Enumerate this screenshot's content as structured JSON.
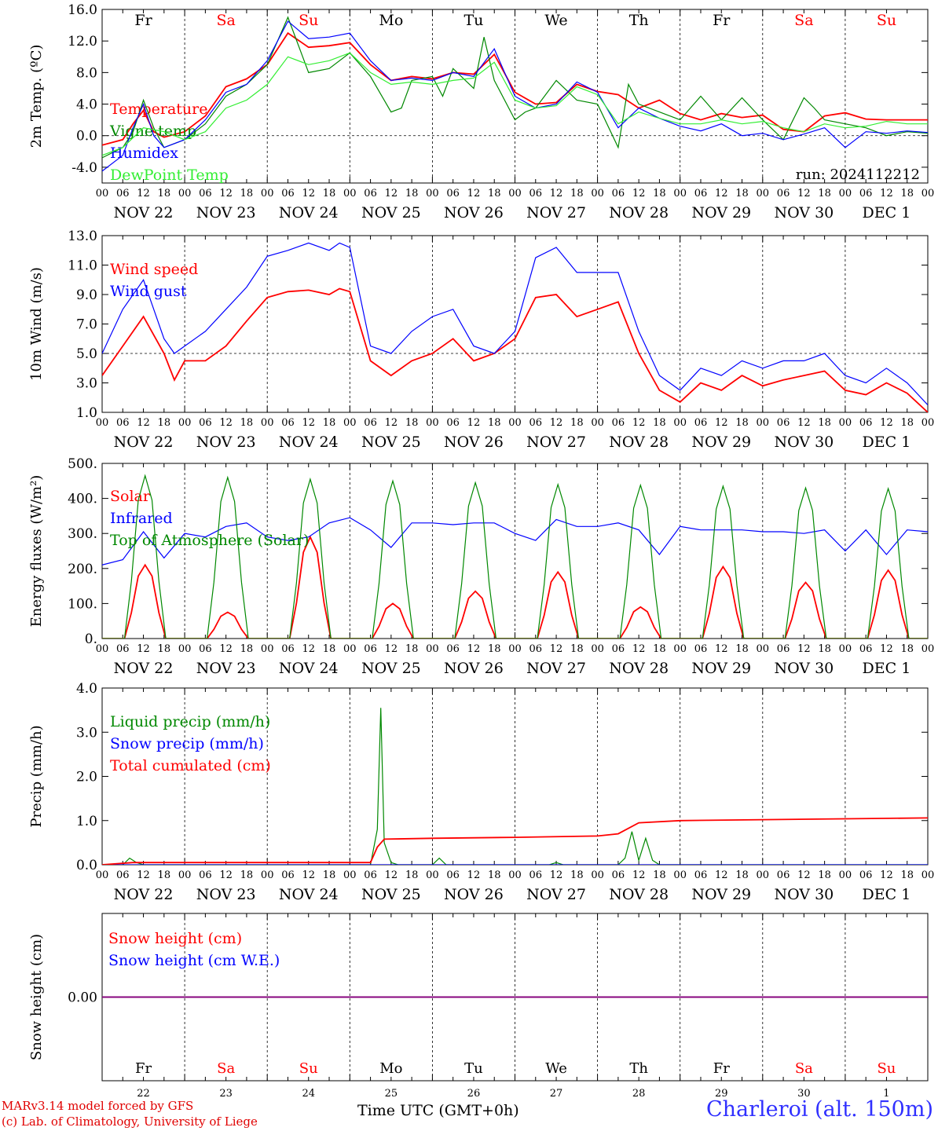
{
  "footer": {
    "model": "MARv3.14 model forced by GFS",
    "copyright": "(c) Lab. of Climatology, University of Liege",
    "xlabel": "Time UTC (GMT+0h)",
    "station": "Charleroi (alt. 150m)"
  },
  "colors": {
    "red": "#ff0000",
    "green": "#008800",
    "blue": "#0000ff",
    "lightgreen": "#33ee33",
    "weekend": "#ff0000",
    "purple": "#800080"
  },
  "days": [
    {
      "abbr": "Fr",
      "date": "NOV 22",
      "num": "22",
      "weekend": false
    },
    {
      "abbr": "Sa",
      "date": "NOV 23",
      "num": "23",
      "weekend": true
    },
    {
      "abbr": "Su",
      "date": "NOV 24",
      "num": "24",
      "weekend": true
    },
    {
      "abbr": "Mo",
      "date": "NOV 25",
      "num": "25",
      "weekend": false
    },
    {
      "abbr": "Tu",
      "date": "NOV 26",
      "num": "26",
      "weekend": false
    },
    {
      "abbr": "We",
      "date": "NOV 27",
      "num": "27",
      "weekend": false
    },
    {
      "abbr": "Th",
      "date": "NOV 28",
      "num": "28",
      "weekend": false
    },
    {
      "abbr": "Fr",
      "date": "NOV 29",
      "num": "29",
      "weekend": false
    },
    {
      "abbr": "Sa",
      "date": "NOV 30",
      "num": "30",
      "weekend": true
    },
    {
      "abbr": "Su",
      "date": "DEC  1",
      "num": "1",
      "weekend": true
    }
  ],
  "hour_ticks": [
    "00",
    "06",
    "12",
    "18"
  ],
  "chart_data": [
    {
      "id": "temp",
      "type": "line",
      "ylabel": "2m Temp. (ºC)",
      "ylim": [
        -6,
        16
      ],
      "yticks": [
        -4,
        0,
        4,
        8,
        12,
        16
      ],
      "ytick_labels": [
        "-4.0",
        "0.0",
        "4.0",
        "8.0",
        "12.0",
        "16.0"
      ],
      "refline": 0,
      "show_day_abbr": true,
      "run": "run: 2024112212",
      "x_unit": "hours since NOV 22 00 UTC",
      "series": [
        {
          "name": "Temperature",
          "color": "red",
          "x": [
            0,
            6,
            9,
            12,
            15,
            18,
            24,
            30,
            36,
            42,
            48,
            54,
            60,
            66,
            72,
            78,
            84,
            90,
            96,
            102,
            108,
            114,
            120,
            126,
            132,
            138,
            144,
            150,
            156,
            162,
            168,
            174,
            180,
            186,
            192,
            198,
            204,
            210,
            216,
            222,
            228,
            234,
            240
          ],
          "y": [
            -1.2,
            -0.5,
            1.5,
            3.2,
            0.5,
            -0.2,
            0.5,
            2.5,
            6.2,
            7.2,
            9.0,
            13.0,
            11.2,
            11.4,
            11.8,
            9.0,
            7.0,
            7.5,
            7.2,
            8.0,
            7.8,
            10.3,
            5.5,
            4.0,
            4.2,
            6.5,
            5.6,
            5.2,
            3.5,
            4.5,
            2.8,
            2.0,
            2.8,
            2.3,
            2.6,
            0.8,
            0.5,
            2.5,
            2.9,
            2.1,
            2.0,
            2.0,
            2.0
          ]
        },
        {
          "name": "Vigne temp",
          "color": "green",
          "x": [
            0,
            6,
            9,
            12,
            15,
            18,
            24,
            30,
            36,
            42,
            48,
            54,
            60,
            66,
            72,
            78,
            84,
            87,
            90,
            96,
            99,
            102,
            108,
            111,
            114,
            120,
            123,
            126,
            132,
            138,
            144,
            150,
            153,
            156,
            162,
            168,
            174,
            180,
            186,
            192,
            198,
            204,
            207,
            210,
            216,
            222,
            228,
            234,
            240
          ],
          "y": [
            -2.8,
            -1.5,
            0.5,
            4.5,
            1.0,
            -1.5,
            -0.5,
            1.5,
            5.0,
            6.5,
            9.0,
            15.0,
            8.0,
            8.5,
            10.5,
            7.5,
            3.0,
            3.5,
            7.0,
            7.5,
            5.0,
            8.5,
            6.0,
            12.5,
            7.0,
            2.0,
            3.0,
            3.5,
            7.0,
            4.5,
            4.0,
            -1.5,
            6.5,
            4.0,
            3.0,
            2.0,
            5.0,
            2.0,
            4.8,
            2.0,
            -0.5,
            4.8,
            3.5,
            2.0,
            1.5,
            1.0,
            0.0,
            0.5,
            0.3
          ]
        },
        {
          "name": "Humidex",
          "color": "blue",
          "x": [
            0,
            6,
            9,
            12,
            15,
            18,
            24,
            30,
            36,
            42,
            48,
            54,
            60,
            66,
            72,
            78,
            84,
            90,
            96,
            102,
            108,
            114,
            120,
            126,
            132,
            138,
            144,
            150,
            156,
            162,
            168,
            174,
            180,
            186,
            192,
            198,
            204,
            210,
            216,
            222,
            228,
            234,
            240
          ],
          "y": [
            -4.5,
            -2.5,
            1.0,
            4.0,
            0.0,
            -1.5,
            -0.5,
            2.0,
            5.5,
            6.5,
            9.5,
            14.5,
            12.3,
            12.5,
            13.0,
            9.5,
            7.0,
            7.3,
            7.0,
            8.0,
            7.5,
            11.0,
            5.0,
            3.5,
            4.0,
            6.8,
            5.5,
            1.0,
            3.5,
            2.2,
            1.2,
            0.6,
            1.5,
            0.0,
            0.3,
            -0.5,
            0.2,
            1.0,
            -1.5,
            0.5,
            0.3,
            0.6,
            0.4
          ]
        },
        {
          "name": "DewPoint Temp",
          "color": "lightgreen",
          "x": [
            0,
            6,
            12,
            18,
            24,
            30,
            36,
            42,
            48,
            54,
            60,
            66,
            72,
            78,
            84,
            90,
            96,
            102,
            108,
            114,
            120,
            126,
            132,
            138,
            144,
            150,
            156,
            162,
            168,
            174,
            180,
            186,
            192,
            198,
            204,
            210,
            216,
            222,
            228,
            234,
            240
          ],
          "y": [
            -2.5,
            -1.5,
            1.0,
            0.5,
            -0.5,
            0.5,
            3.5,
            4.5,
            6.5,
            10.0,
            9.0,
            9.5,
            10.5,
            8.0,
            6.5,
            6.8,
            6.5,
            7.0,
            7.3,
            9.3,
            4.5,
            3.5,
            3.8,
            6.2,
            5.2,
            1.5,
            3.0,
            2.2,
            1.5,
            1.5,
            2.0,
            1.5,
            1.8,
            1.0,
            0.5,
            1.5,
            1.0,
            1.2,
            1.8,
            1.5,
            1.5
          ]
        }
      ]
    },
    {
      "id": "wind",
      "type": "line",
      "ylabel": "10m Wind (m/s)",
      "ylim": [
        1,
        13
      ],
      "yticks": [
        1,
        3,
        5,
        7,
        9,
        11,
        13
      ],
      "ytick_labels": [
        "1.0",
        "3.0",
        "5.0",
        "7.0",
        "9.0",
        "11.0",
        "13.0"
      ],
      "refline": 5,
      "x_unit": "hours since NOV 22 00 UTC",
      "series": [
        {
          "name": "Wind speed",
          "color": "red",
          "x": [
            0,
            6,
            12,
            18,
            21,
            24,
            30,
            36,
            42,
            48,
            54,
            60,
            66,
            69,
            72,
            78,
            84,
            90,
            96,
            102,
            108,
            114,
            120,
            126,
            132,
            138,
            144,
            150,
            156,
            162,
            168,
            174,
            180,
            186,
            192,
            198,
            204,
            210,
            216,
            222,
            228,
            234,
            240
          ],
          "y": [
            3.5,
            5.5,
            7.5,
            5.0,
            3.2,
            4.5,
            4.5,
            5.5,
            7.2,
            8.8,
            9.2,
            9.3,
            9.0,
            9.4,
            9.2,
            4.5,
            3.5,
            4.5,
            5.0,
            6.0,
            4.5,
            5.0,
            6.0,
            8.8,
            9.0,
            7.5,
            8.0,
            8.5,
            5.0,
            2.5,
            1.7,
            3.0,
            2.5,
            3.5,
            2.8,
            3.2,
            3.5,
            3.8,
            2.5,
            2.2,
            3.0,
            2.3,
            1.0
          ]
        },
        {
          "name": "Wind gust",
          "color": "blue",
          "x": [
            0,
            6,
            12,
            18,
            21,
            24,
            30,
            36,
            42,
            48,
            54,
            60,
            66,
            69,
            72,
            78,
            84,
            90,
            96,
            102,
            108,
            114,
            120,
            126,
            132,
            138,
            144,
            150,
            156,
            162,
            168,
            174,
            180,
            186,
            192,
            198,
            204,
            210,
            216,
            222,
            228,
            234,
            240
          ],
          "y": [
            5.0,
            8.0,
            10.0,
            6.0,
            5.0,
            5.5,
            6.5,
            8.0,
            9.5,
            11.6,
            12.0,
            12.5,
            12.0,
            12.5,
            12.2,
            5.5,
            5.0,
            6.5,
            7.5,
            8.0,
            5.5,
            5.0,
            6.5,
            11.5,
            12.2,
            10.5,
            10.5,
            10.5,
            6.5,
            3.5,
            2.5,
            4.0,
            3.5,
            4.5,
            4.0,
            4.5,
            4.5,
            5.0,
            3.5,
            3.0,
            4.0,
            3.0,
            1.5
          ]
        }
      ]
    },
    {
      "id": "energy",
      "type": "line",
      "ylabel": "Energy fluxes (W/m²)",
      "ylim": [
        0,
        500
      ],
      "yticks": [
        0,
        100,
        200,
        300,
        400,
        500
      ],
      "ytick_labels": [
        "0.",
        "100.",
        "200.",
        "300.",
        "400.",
        "500."
      ],
      "x_unit": "hours since NOV 22 00 UTC",
      "series": [
        {
          "name": "Solar",
          "color": "red",
          "peaks": [
            {
              "h": 12.5,
              "v": 210
            },
            {
              "h": 36.5,
              "v": 75
            },
            {
              "h": 60.5,
              "v": 290
            },
            {
              "h": 84.5,
              "v": 100
            },
            {
              "h": 108.5,
              "v": 135
            },
            {
              "h": 132.5,
              "v": 190
            },
            {
              "h": 156.5,
              "v": 90
            },
            {
              "h": 180.5,
              "v": 205
            },
            {
              "h": 204.5,
              "v": 160
            },
            {
              "h": 228.5,
              "v": 195
            }
          ]
        },
        {
          "name": "Infrared",
          "color": "blue",
          "x": [
            0,
            6,
            12,
            18,
            24,
            30,
            36,
            42,
            48,
            54,
            60,
            66,
            72,
            78,
            84,
            90,
            96,
            102,
            108,
            114,
            120,
            126,
            132,
            138,
            144,
            150,
            156,
            162,
            168,
            174,
            180,
            186,
            192,
            198,
            204,
            210,
            216,
            222,
            228,
            234,
            240
          ],
          "y": [
            210,
            225,
            305,
            230,
            300,
            290,
            320,
            330,
            290,
            280,
            290,
            330,
            345,
            310,
            260,
            330,
            330,
            325,
            330,
            330,
            300,
            280,
            340,
            320,
            320,
            330,
            310,
            240,
            320,
            310,
            310,
            310,
            305,
            305,
            300,
            310,
            250,
            310,
            240,
            310,
            305
          ]
        },
        {
          "name": "Top of Atmosphere (Solar)",
          "color": "green",
          "peaks": [
            {
              "h": 12.5,
              "v": 465
            },
            {
              "h": 36.5,
              "v": 460
            },
            {
              "h": 60.5,
              "v": 455
            },
            {
              "h": 84.5,
              "v": 450
            },
            {
              "h": 108.5,
              "v": 445
            },
            {
              "h": 132.5,
              "v": 440
            },
            {
              "h": 156.5,
              "v": 438
            },
            {
              "h": 180.5,
              "v": 435
            },
            {
              "h": 204.5,
              "v": 430
            },
            {
              "h": 228.5,
              "v": 428
            }
          ]
        }
      ]
    },
    {
      "id": "precip",
      "type": "line",
      "ylabel": "Precip (mm/h)",
      "ylim": [
        0,
        4
      ],
      "yticks": [
        0,
        1,
        2,
        3,
        4
      ],
      "ytick_labels": [
        "0.0",
        "1.0",
        "2.0",
        "3.0",
        "4.0"
      ],
      "x_unit": "hours since NOV 22 00 UTC",
      "series": [
        {
          "name": "Liquid precip (mm/h)",
          "color": "green",
          "x": [
            0,
            6,
            8,
            10,
            12,
            78,
            80,
            81,
            82,
            84,
            86,
            96,
            98,
            100,
            130,
            132,
            134,
            150,
            152,
            154,
            156,
            158,
            160,
            162,
            240
          ],
          "y": [
            0,
            0,
            0.15,
            0.05,
            0,
            0,
            0.8,
            3.55,
            0.5,
            0.05,
            0,
            0,
            0.15,
            0,
            0,
            0.05,
            0,
            0,
            0.15,
            0.75,
            0.1,
            0.6,
            0.1,
            0,
            0
          ]
        },
        {
          "name": "Snow precip (mm/h)",
          "color": "blue",
          "x": [
            0,
            240
          ],
          "y": [
            0,
            0
          ]
        },
        {
          "name": "Total cumulated (cm)",
          "color": "red",
          "x": [
            0,
            9,
            78,
            80,
            82,
            96,
            120,
            144,
            150,
            156,
            168,
            192,
            216,
            240
          ],
          "y": [
            0,
            0.05,
            0.05,
            0.4,
            0.58,
            0.6,
            0.62,
            0.65,
            0.7,
            0.95,
            1.0,
            1.02,
            1.04,
            1.06
          ]
        }
      ]
    },
    {
      "id": "snow",
      "type": "line",
      "ylabel": "Snow height (cm)",
      "ylim": [
        -1,
        1
      ],
      "yticks": [
        0
      ],
      "ytick_labels": [
        "0.00"
      ],
      "show_day_abbr_bottom": true,
      "x_unit": "hours since NOV 22 00 UTC",
      "series": [
        {
          "name": "Snow height (cm)",
          "color": "red",
          "x": [
            0,
            240
          ],
          "y": [
            0,
            0
          ]
        },
        {
          "name": "Snow height (cm W.E.)",
          "color": "blue",
          "x": [
            0,
            240
          ],
          "y": [
            0,
            0
          ]
        }
      ]
    }
  ]
}
